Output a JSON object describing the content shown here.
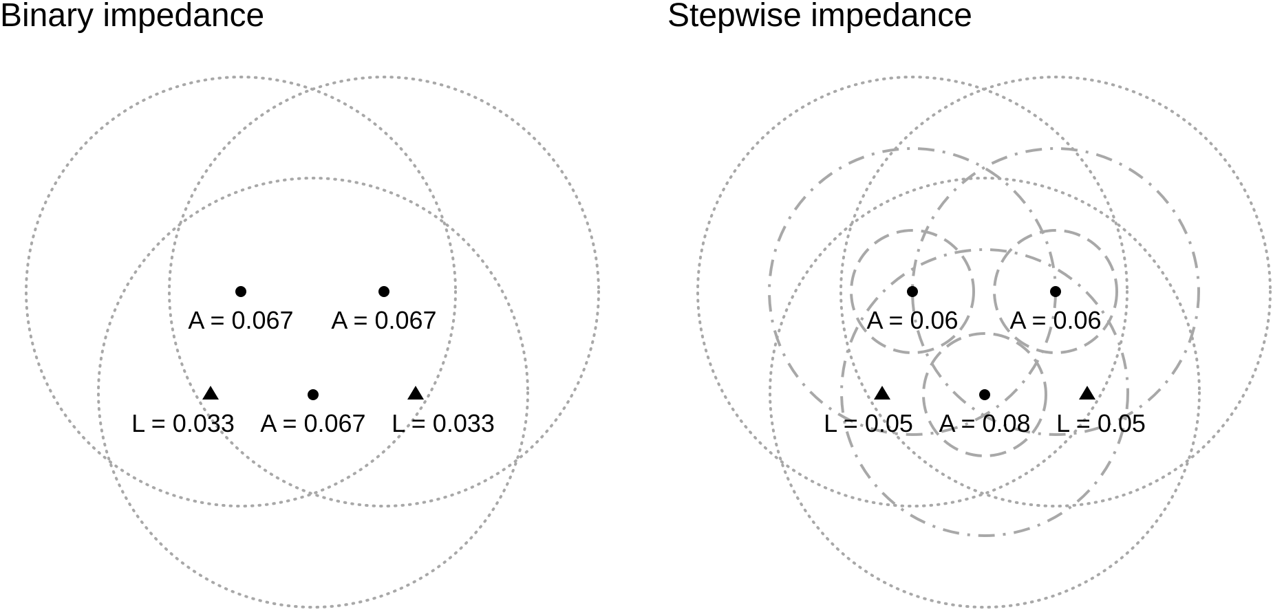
{
  "colors": {
    "ring": "#a8a8a8",
    "marker": "#000000",
    "text": "#000000"
  },
  "panels": [
    {
      "title": "Binary impedance",
      "points": [
        {
          "kind": "A",
          "label": "A = 0.067"
        },
        {
          "kind": "A",
          "label": "A = 0.067"
        },
        {
          "kind": "L",
          "label": "L = 0.033"
        },
        {
          "kind": "A",
          "label": "A = 0.067"
        },
        {
          "kind": "L",
          "label": "L = 0.033"
        }
      ]
    },
    {
      "title": "Stepwise impedance",
      "points": [
        {
          "kind": "A",
          "label": "A = 0.06"
        },
        {
          "kind": "A",
          "label": "A = 0.06"
        },
        {
          "kind": "L",
          "label": "L = 0.05"
        },
        {
          "kind": "A",
          "label": "A = 0.08"
        },
        {
          "kind": "L",
          "label": "L = 0.05"
        }
      ]
    }
  ]
}
